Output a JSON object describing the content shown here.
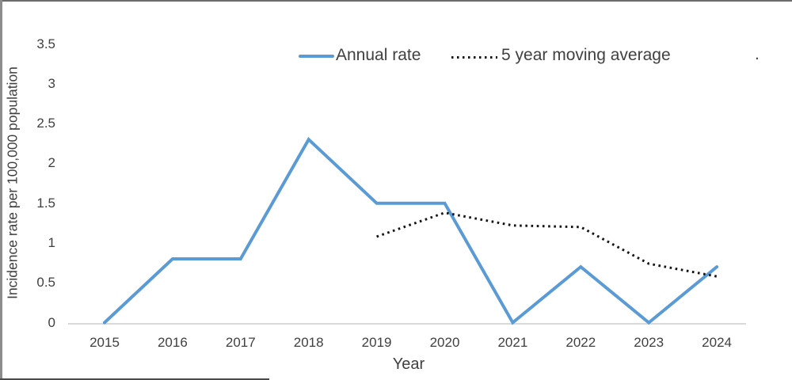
{
  "figure": {
    "y_axis_title": "Incidence rate per 100,000 population",
    "x_axis_title": "Year",
    "stray_mark": "."
  },
  "legend": {
    "annual_label": "Annual rate",
    "moving_avg_label": "5 year moving average"
  },
  "colors": {
    "annual_line": "#5B9BD5",
    "moving_avg_line": "#141414",
    "text": "#404040",
    "axis_line": "#d9d9d9"
  },
  "chart_data": {
    "type": "line",
    "title": "",
    "xlabel": "Year",
    "ylabel": "Incidence rate per 100,000 population",
    "categories": [
      2015,
      2016,
      2017,
      2018,
      2019,
      2020,
      2021,
      2022,
      2023,
      2024
    ],
    "y_ticks": [
      3.5,
      3,
      2.5,
      2,
      1.5,
      1,
      0.5,
      0
    ],
    "ylim": [
      0,
      3.5
    ],
    "grid": false,
    "legend_position": "top",
    "series": [
      {
        "name": "Annual rate",
        "style": "solid",
        "color": "#5B9BD5",
        "x": [
          2015,
          2016,
          2017,
          2018,
          2019,
          2020,
          2021,
          2022,
          2023,
          2024
        ],
        "values": [
          0,
          0.8,
          0.8,
          2.3,
          1.5,
          1.5,
          0,
          0.7,
          0,
          0.7
        ]
      },
      {
        "name": "5 year moving average",
        "style": "dotted",
        "color": "#141414",
        "x": [
          2019,
          2020,
          2021,
          2022,
          2023,
          2024
        ],
        "values": [
          1.08,
          1.38,
          1.22,
          1.2,
          0.74,
          0.58
        ]
      }
    ]
  }
}
